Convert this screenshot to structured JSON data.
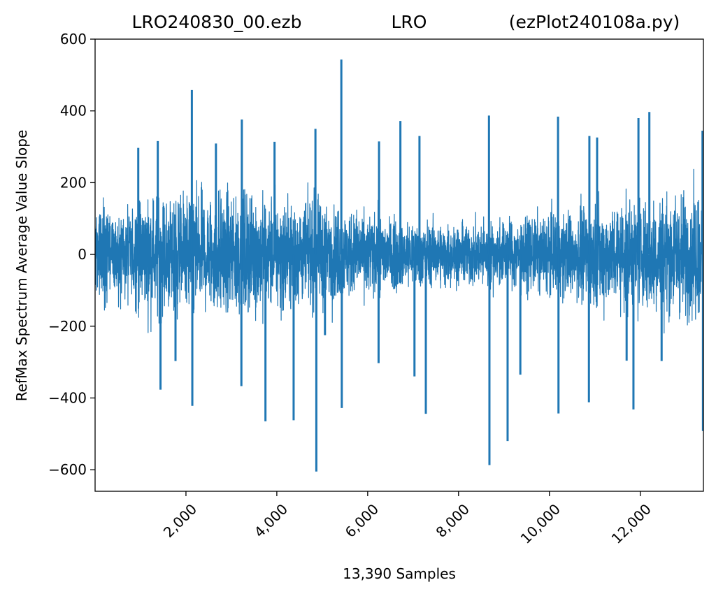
{
  "chart_data": {
    "type": "line",
    "title_left": "LRO240830_00.ezb",
    "title_center": "LRO",
    "title_right": "(ezPlot240108a.py)",
    "xlabel": "13,390 Samples",
    "ylabel": "RefMax Spectrum Average Value Slope",
    "xlim": [
      0,
      13390
    ],
    "ylim": [
      -660,
      600
    ],
    "x_ticks": [
      2000,
      4000,
      6000,
      8000,
      10000,
      12000
    ],
    "x_tick_labels": [
      "2,000",
      "4,000",
      "6,000",
      "8,000",
      "10,000",
      "12,000"
    ],
    "y_ticks": [
      -600,
      -400,
      -200,
      0,
      200,
      400,
      600
    ],
    "y_tick_labels": [
      "−600",
      "−400",
      "−200",
      "0",
      "200",
      "400",
      "600"
    ],
    "grid": false,
    "line_color": "#1f77b4",
    "sample_count": 13390,
    "noise_envelope": 150,
    "spikes": [
      {
        "x": 2130,
        "y": 458
      },
      {
        "x": 2140,
        "y": -422
      },
      {
        "x": 1440,
        "y": -377
      },
      {
        "x": 3230,
        "y": 376
      },
      {
        "x": 3220,
        "y": -367
      },
      {
        "x": 3750,
        "y": -465
      },
      {
        "x": 4370,
        "y": -462
      },
      {
        "x": 4850,
        "y": 350
      },
      {
        "x": 4870,
        "y": -605
      },
      {
        "x": 5420,
        "y": 543
      },
      {
        "x": 5430,
        "y": -428
      },
      {
        "x": 6720,
        "y": 372
      },
      {
        "x": 7280,
        "y": -444
      },
      {
        "x": 8670,
        "y": 387
      },
      {
        "x": 8680,
        "y": -587
      },
      {
        "x": 9080,
        "y": -520
      },
      {
        "x": 10190,
        "y": 384
      },
      {
        "x": 10200,
        "y": -443
      },
      {
        "x": 10870,
        "y": -412
      },
      {
        "x": 11850,
        "y": -432
      },
      {
        "x": 11960,
        "y": 380
      },
      {
        "x": 12200,
        "y": 397
      },
      {
        "x": 13370,
        "y": 345
      },
      {
        "x": 13380,
        "y": -492
      },
      {
        "x": 950,
        "y": 297
      },
      {
        "x": 1380,
        "y": 316
      },
      {
        "x": 1770,
        "y": -297
      },
      {
        "x": 2660,
        "y": 309
      },
      {
        "x": 3950,
        "y": 314
      },
      {
        "x": 6250,
        "y": 315
      },
      {
        "x": 7140,
        "y": 330
      },
      {
        "x": 10880,
        "y": 330
      },
      {
        "x": 11050,
        "y": 326
      },
      {
        "x": 11700,
        "y": -296
      },
      {
        "x": 12470,
        "y": -297
      },
      {
        "x": 6240,
        "y": -303
      },
      {
        "x": 5060,
        "y": -225
      },
      {
        "x": 9360,
        "y": -335
      },
      {
        "x": 7030,
        "y": -340
      }
    ]
  }
}
